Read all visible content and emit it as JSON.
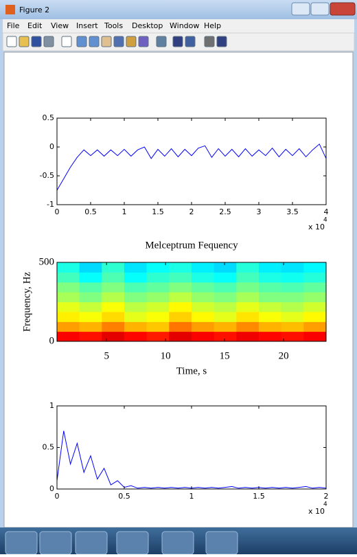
{
  "window": {
    "title": "Figure 2"
  },
  "menu": [
    "File",
    "Edit",
    "View",
    "Insert",
    "Tools",
    "Desktop",
    "Window",
    "Help"
  ],
  "chart_data": [
    {
      "type": "line",
      "color": "#0000ff",
      "x": [
        0,
        0.1,
        0.2,
        0.3,
        0.4,
        0.5,
        0.6,
        0.7,
        0.8,
        0.9,
        1,
        1.1,
        1.2,
        1.3,
        1.4,
        1.5,
        1.6,
        1.7,
        1.8,
        1.9,
        2,
        2.1,
        2.2,
        2.3,
        2.4,
        2.5,
        2.6,
        2.7,
        2.8,
        2.9,
        3,
        3.1,
        3.2,
        3.3,
        3.4,
        3.5,
        3.6,
        3.7,
        3.8,
        3.9,
        4
      ],
      "values": [
        -0.75,
        -0.55,
        -0.35,
        -0.18,
        -0.05,
        -0.15,
        -0.05,
        -0.16,
        -0.05,
        -0.15,
        -0.04,
        -0.16,
        -0.05,
        0.0,
        -0.2,
        -0.04,
        -0.16,
        -0.03,
        -0.17,
        -0.04,
        -0.15,
        -0.02,
        0.02,
        -0.18,
        -0.03,
        -0.16,
        -0.04,
        -0.17,
        -0.03,
        -0.16,
        -0.05,
        -0.15,
        -0.02,
        -0.17,
        -0.04,
        -0.15,
        -0.03,
        -0.17,
        -0.05,
        0.05,
        -0.2
      ],
      "xlim": [
        0,
        4
      ],
      "xticks": [
        0,
        0.5,
        1,
        1.5,
        2,
        2.5,
        3,
        3.5,
        4
      ],
      "ylim": [
        -1,
        0.5
      ],
      "yticks": [
        -1,
        -0.5,
        0,
        0.5
      ],
      "x_multiplier": "x 10",
      "x_exponent": "4"
    },
    {
      "type": "heatmap",
      "title": "Melceptrum Fequency",
      "xlabel": "Time, s",
      "ylabel": "Frequency, Hz",
      "x": [
        1.75,
        3.65,
        5.55,
        7.45,
        9.35,
        11.25,
        13.15,
        15.05,
        16.95,
        18.85,
        20.75,
        22.65
      ],
      "y": [
        31,
        94,
        156,
        219,
        281,
        344,
        406,
        469
      ],
      "z": [
        [
          0.88,
          0.86,
          0.9,
          0.87,
          0.85,
          0.9,
          0.88,
          0.86,
          0.89,
          0.87,
          0.86,
          0.88
        ],
        [
          0.72,
          0.7,
          0.75,
          0.7,
          0.68,
          0.76,
          0.72,
          0.7,
          0.74,
          0.7,
          0.69,
          0.72
        ],
        [
          0.64,
          0.62,
          0.66,
          0.6,
          0.62,
          0.67,
          0.63,
          0.6,
          0.65,
          0.62,
          0.6,
          0.63
        ],
        [
          0.6,
          0.57,
          0.62,
          0.56,
          0.58,
          0.63,
          0.58,
          0.56,
          0.6,
          0.57,
          0.55,
          0.58
        ],
        [
          0.54,
          0.5,
          0.55,
          0.5,
          0.52,
          0.56,
          0.52,
          0.5,
          0.54,
          0.5,
          0.5,
          0.52
        ],
        [
          0.5,
          0.46,
          0.5,
          0.45,
          0.47,
          0.5,
          0.47,
          0.45,
          0.49,
          0.46,
          0.45,
          0.47
        ],
        [
          0.44,
          0.38,
          0.45,
          0.38,
          0.42,
          0.44,
          0.4,
          0.38,
          0.44,
          0.4,
          0.39,
          0.41
        ],
        [
          0.4,
          0.34,
          0.42,
          0.35,
          0.38,
          0.4,
          0.36,
          0.34,
          0.41,
          0.36,
          0.35,
          0.37
        ]
      ],
      "clim": [
        0,
        1
      ],
      "xlim": [
        0.8,
        23.6
      ],
      "xticks": [
        5,
        10,
        15,
        20
      ],
      "ylim": [
        0,
        500
      ],
      "yticks": [
        0,
        500
      ]
    },
    {
      "type": "line",
      "color": "#0000ff",
      "x": [
        0,
        0.05,
        0.1,
        0.15,
        0.2,
        0.25,
        0.3,
        0.35,
        0.4,
        0.45,
        0.5,
        0.55,
        0.6,
        0.65,
        0.7,
        0.75,
        0.8,
        0.85,
        0.9,
        0.95,
        1,
        1.05,
        1.1,
        1.15,
        1.2,
        1.25,
        1.3,
        1.35,
        1.4,
        1.45,
        1.5,
        1.55,
        1.6,
        1.65,
        1.7,
        1.75,
        1.8,
        1.85,
        1.9,
        1.95,
        2
      ],
      "values": [
        0.1,
        0.7,
        0.3,
        0.55,
        0.2,
        0.4,
        0.12,
        0.25,
        0.05,
        0.1,
        0.02,
        0.04,
        0.01,
        0.02,
        0.01,
        0.02,
        0.01,
        0.02,
        0.01,
        0.02,
        0.01,
        0.02,
        0.01,
        0.02,
        0.01,
        0.02,
        0.03,
        0.01,
        0.02,
        0.01,
        0.02,
        0.01,
        0.02,
        0.01,
        0.02,
        0.01,
        0.02,
        0.03,
        0.01,
        0.02,
        0.01
      ],
      "xlim": [
        0,
        2
      ],
      "xticks": [
        0,
        0.5,
        1,
        1.5,
        2
      ],
      "ylim": [
        0,
        1
      ],
      "yticks": [
        0,
        0.5,
        1
      ],
      "x_multiplier": "x 10",
      "x_exponent": "4"
    }
  ]
}
